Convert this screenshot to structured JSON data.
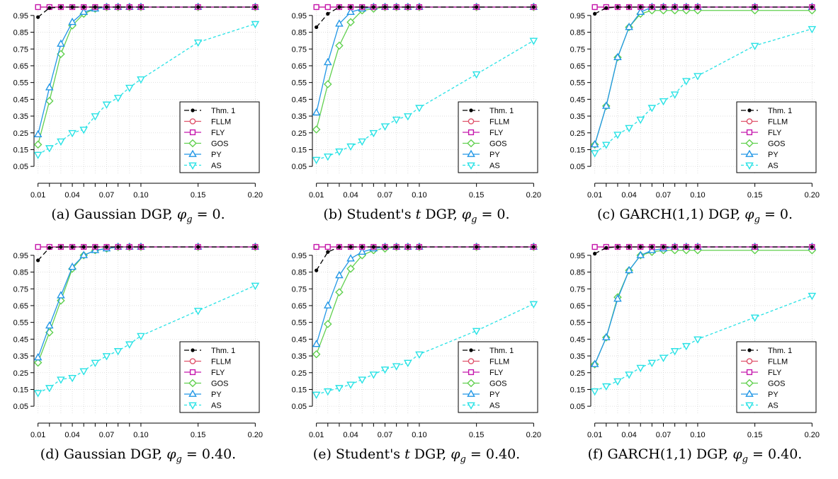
{
  "legend_labels": [
    "Thm. 1",
    "FLLM",
    "FLY",
    "GOS",
    "PY",
    "AS"
  ],
  "series_colors": {
    "Thm. 1": "#000000",
    "FLLM": "#df536b",
    "FLY": "#c518ad",
    "GOS": "#61d04f",
    "PY": "#2297e6",
    "AS": "#28e2e5"
  },
  "captions": [
    {
      "tag": "(a)",
      "dgp": "Gaussian DGP,",
      "phi_value": "= 0."
    },
    {
      "tag": "(b)",
      "dgp": "Student's",
      "t": "t",
      "dgp_rest": "DGP,",
      "phi_value": "= 0."
    },
    {
      "tag": "(c)",
      "dgp": "GARCH(1,1) DGP,",
      "phi_value": "= 0."
    },
    {
      "tag": "(d)",
      "dgp": "Gaussian DGP,",
      "phi_value": "= 0.40."
    },
    {
      "tag": "(e)",
      "dgp": "Student's",
      "t": "t",
      "dgp_rest": "DGP,",
      "phi_value": "= 0.40."
    },
    {
      "tag": "(f)",
      "dgp": "GARCH(1,1) DGP,",
      "phi_value": "= 0.40."
    }
  ],
  "chart_data": [
    {
      "type": "line",
      "grid": true,
      "legend_position": "bottom-right",
      "x": [
        0.01,
        0.02,
        0.03,
        0.04,
        0.05,
        0.06,
        0.07,
        0.08,
        0.09,
        0.1,
        0.15,
        0.2
      ],
      "xticks": [
        "0.01",
        "0.04",
        "0.07",
        "0.10",
        "0.15",
        "0.20"
      ],
      "yticks": [
        "0.05",
        "0.15",
        "0.25",
        "0.35",
        "0.45",
        "0.55",
        "0.65",
        "0.75",
        "0.85",
        "0.95"
      ],
      "ylim": [
        0.0,
        1.0
      ],
      "series": [
        {
          "name": "Thm. 1",
          "values": [
            0.94,
            0.995,
            1,
            1,
            1,
            1,
            1,
            1,
            1,
            1,
            1,
            1
          ]
        },
        {
          "name": "FLLM",
          "values": [
            1,
            1,
            1,
            1,
            1,
            1,
            1,
            1,
            1,
            1,
            1,
            1
          ]
        },
        {
          "name": "FLY",
          "values": [
            1,
            1,
            1,
            1,
            1,
            1,
            1,
            1,
            1,
            1,
            1,
            1
          ]
        },
        {
          "name": "GOS",
          "values": [
            0.18,
            0.44,
            0.72,
            0.89,
            0.96,
            0.99,
            1,
            1,
            1,
            1,
            1,
            1
          ]
        },
        {
          "name": "PY",
          "values": [
            0.24,
            0.52,
            0.78,
            0.91,
            0.97,
            0.99,
            1,
            1,
            1,
            1,
            1,
            1
          ]
        },
        {
          "name": "AS",
          "values": [
            0.12,
            0.16,
            0.2,
            0.25,
            0.27,
            0.35,
            0.42,
            0.46,
            0.52,
            0.57,
            0.79,
            0.9
          ]
        }
      ]
    },
    {
      "type": "line",
      "grid": true,
      "legend_position": "bottom-right",
      "x": [
        0.01,
        0.02,
        0.03,
        0.04,
        0.05,
        0.06,
        0.07,
        0.08,
        0.09,
        0.1,
        0.15,
        0.2
      ],
      "xticks": [
        "0.01",
        "0.04",
        "0.07",
        "0.10",
        "0.15",
        "0.20"
      ],
      "yticks": [
        "0.05",
        "0.15",
        "0.25",
        "0.35",
        "0.45",
        "0.55",
        "0.65",
        "0.75",
        "0.85",
        "0.95"
      ],
      "ylim": [
        0.0,
        1.0
      ],
      "series": [
        {
          "name": "Thm. 1",
          "values": [
            0.88,
            0.96,
            1,
            1,
            1,
            1,
            1,
            1,
            1,
            1,
            1,
            1
          ]
        },
        {
          "name": "FLLM",
          "values": [
            1,
            1,
            1,
            1,
            1,
            1,
            1,
            1,
            1,
            1,
            1,
            1
          ]
        },
        {
          "name": "FLY",
          "values": [
            1,
            1,
            1,
            1,
            1,
            1,
            1,
            1,
            1,
            1,
            1,
            1
          ]
        },
        {
          "name": "GOS",
          "values": [
            0.27,
            0.54,
            0.77,
            0.91,
            0.98,
            0.99,
            1,
            1,
            1,
            1,
            1,
            1
          ]
        },
        {
          "name": "PY",
          "values": [
            0.37,
            0.67,
            0.9,
            0.97,
            0.99,
            1,
            1,
            1,
            1,
            1,
            1,
            1
          ]
        },
        {
          "name": "AS",
          "values": [
            0.09,
            0.11,
            0.14,
            0.17,
            0.2,
            0.25,
            0.29,
            0.33,
            0.35,
            0.4,
            0.6,
            0.8
          ]
        }
      ]
    },
    {
      "type": "line",
      "grid": true,
      "legend_position": "bottom-right",
      "x": [
        0.01,
        0.02,
        0.03,
        0.04,
        0.05,
        0.06,
        0.07,
        0.08,
        0.09,
        0.1,
        0.15,
        0.2
      ],
      "xticks": [
        "0.01",
        "0.04",
        "0.07",
        "0.10",
        "0.15",
        "0.20"
      ],
      "yticks": [
        "0.05",
        "0.15",
        "0.25",
        "0.35",
        "0.45",
        "0.55",
        "0.65",
        "0.75",
        "0.85",
        "0.95"
      ],
      "ylim": [
        0.0,
        1.0
      ],
      "series": [
        {
          "name": "Thm. 1",
          "values": [
            0.96,
            0.995,
            1,
            1,
            1,
            1,
            1,
            1,
            1,
            1,
            1,
            1
          ]
        },
        {
          "name": "FLLM",
          "values": [
            1,
            1,
            1,
            1,
            1,
            1,
            1,
            1,
            1,
            1,
            1,
            1
          ]
        },
        {
          "name": "FLY",
          "values": [
            1,
            1,
            1,
            1,
            1,
            1,
            1,
            1,
            1,
            1,
            1,
            1
          ]
        },
        {
          "name": "GOS",
          "values": [
            0.18,
            0.41,
            0.7,
            0.88,
            0.96,
            0.98,
            0.98,
            0.98,
            0.98,
            0.98,
            0.98,
            0.98
          ]
        },
        {
          "name": "PY",
          "values": [
            0.18,
            0.41,
            0.7,
            0.88,
            0.97,
            1,
            1,
            1,
            1,
            1,
            1,
            1
          ]
        },
        {
          "name": "AS",
          "values": [
            0.13,
            0.18,
            0.24,
            0.28,
            0.33,
            0.4,
            0.44,
            0.48,
            0.56,
            0.59,
            0.77,
            0.87
          ]
        }
      ]
    },
    {
      "type": "line",
      "grid": true,
      "legend_position": "bottom-right",
      "x": [
        0.01,
        0.02,
        0.03,
        0.04,
        0.05,
        0.06,
        0.07,
        0.08,
        0.09,
        0.1,
        0.15,
        0.2
      ],
      "xticks": [
        "0.01",
        "0.04",
        "0.07",
        "0.10",
        "0.15",
        "0.20"
      ],
      "yticks": [
        "0.05",
        "0.15",
        "0.25",
        "0.35",
        "0.45",
        "0.55",
        "0.65",
        "0.75",
        "0.85",
        "0.95"
      ],
      "ylim": [
        0.0,
        1.0
      ],
      "series": [
        {
          "name": "Thm. 1",
          "values": [
            0.92,
            0.995,
            1,
            1,
            1,
            1,
            1,
            1,
            1,
            1,
            1,
            1
          ]
        },
        {
          "name": "FLLM",
          "values": [
            1,
            1,
            1,
            1,
            1,
            1,
            1,
            1,
            1,
            1,
            1,
            1
          ]
        },
        {
          "name": "FLY",
          "values": [
            1,
            1,
            1,
            1,
            1,
            1,
            1,
            1,
            1,
            1,
            1,
            1
          ]
        },
        {
          "name": "GOS",
          "values": [
            0.31,
            0.49,
            0.68,
            0.87,
            0.95,
            0.98,
            0.99,
            1,
            1,
            1,
            1,
            1
          ]
        },
        {
          "name": "PY",
          "values": [
            0.34,
            0.53,
            0.71,
            0.88,
            0.95,
            0.98,
            0.99,
            1,
            1,
            1,
            1,
            1
          ]
        },
        {
          "name": "AS",
          "values": [
            0.13,
            0.16,
            0.21,
            0.22,
            0.26,
            0.31,
            0.35,
            0.38,
            0.42,
            0.47,
            0.62,
            0.77
          ]
        }
      ]
    },
    {
      "type": "line",
      "grid": true,
      "legend_position": "bottom-right",
      "x": [
        0.01,
        0.02,
        0.03,
        0.04,
        0.05,
        0.06,
        0.07,
        0.08,
        0.09,
        0.1,
        0.15,
        0.2
      ],
      "xticks": [
        "0.01",
        "0.04",
        "0.07",
        "0.10",
        "0.15",
        "0.20"
      ],
      "yticks": [
        "0.05",
        "0.15",
        "0.25",
        "0.35",
        "0.45",
        "0.55",
        "0.65",
        "0.75",
        "0.85",
        "0.95"
      ],
      "ylim": [
        0.0,
        1.0
      ],
      "series": [
        {
          "name": "Thm. 1",
          "values": [
            0.86,
            0.97,
            1,
            1,
            1,
            1,
            1,
            1,
            1,
            1,
            1,
            1
          ]
        },
        {
          "name": "FLLM",
          "values": [
            1,
            1,
            1,
            1,
            1,
            1,
            1,
            1,
            1,
            1,
            1,
            1
          ]
        },
        {
          "name": "FLY",
          "values": [
            1,
            1,
            1,
            1,
            1,
            1,
            1,
            1,
            1,
            1,
            1,
            1
          ]
        },
        {
          "name": "GOS",
          "values": [
            0.36,
            0.54,
            0.73,
            0.87,
            0.95,
            0.98,
            0.99,
            1,
            1,
            1,
            1,
            1
          ]
        },
        {
          "name": "PY",
          "values": [
            0.42,
            0.65,
            0.83,
            0.93,
            0.97,
            0.99,
            1,
            1,
            1,
            1,
            1,
            1
          ]
        },
        {
          "name": "AS",
          "values": [
            0.12,
            0.14,
            0.16,
            0.18,
            0.21,
            0.24,
            0.27,
            0.29,
            0.31,
            0.36,
            0.5,
            0.66
          ]
        }
      ]
    },
    {
      "type": "line",
      "grid": true,
      "legend_position": "bottom-right",
      "x": [
        0.01,
        0.02,
        0.03,
        0.04,
        0.05,
        0.06,
        0.07,
        0.08,
        0.09,
        0.1,
        0.15,
        0.2
      ],
      "xticks": [
        "0.01",
        "0.04",
        "0.07",
        "0.10",
        "0.15",
        "0.20"
      ],
      "yticks": [
        "0.05",
        "0.15",
        "0.25",
        "0.35",
        "0.45",
        "0.55",
        "0.65",
        "0.75",
        "0.85",
        "0.95"
      ],
      "ylim": [
        0.0,
        1.0
      ],
      "series": [
        {
          "name": "Thm. 1",
          "values": [
            0.96,
            0.995,
            1,
            1,
            1,
            1,
            1,
            1,
            1,
            1,
            1,
            1
          ]
        },
        {
          "name": "FLLM",
          "values": [
            1,
            1,
            1,
            1,
            1,
            1,
            1,
            1,
            1,
            1,
            1,
            1
          ]
        },
        {
          "name": "FLY",
          "values": [
            1,
            1,
            1,
            1,
            1,
            1,
            1,
            1,
            1,
            1,
            1,
            1
          ]
        },
        {
          "name": "GOS",
          "values": [
            0.3,
            0.46,
            0.7,
            0.86,
            0.95,
            0.97,
            0.98,
            0.98,
            0.98,
            0.98,
            0.98,
            0.98
          ]
        },
        {
          "name": "PY",
          "values": [
            0.3,
            0.46,
            0.69,
            0.86,
            0.95,
            0.98,
            0.99,
            1,
            1,
            1,
            1,
            1
          ]
        },
        {
          "name": "AS",
          "values": [
            0.14,
            0.17,
            0.2,
            0.24,
            0.28,
            0.31,
            0.34,
            0.38,
            0.41,
            0.45,
            0.58,
            0.71
          ]
        }
      ]
    }
  ]
}
